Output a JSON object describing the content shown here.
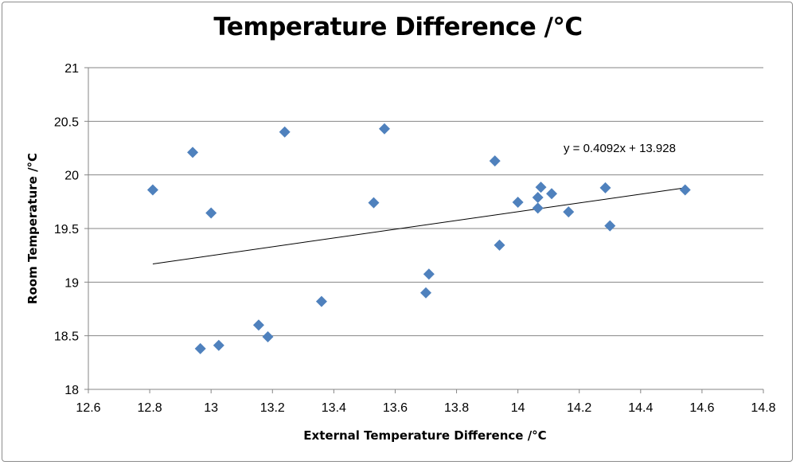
{
  "chart_data": {
    "type": "scatter",
    "title": "Temperature Difference /°C",
    "xlabel": "External Temperature Difference /°C",
    "ylabel": "Room Temperature /°C",
    "xlim": [
      12.6,
      14.8
    ],
    "ylim": [
      18,
      21
    ],
    "x_ticks": [
      "12.6",
      "12.8",
      "13",
      "13.2",
      "13.4",
      "13.6",
      "13.8",
      "14",
      "14.2",
      "14.4",
      "14.6",
      "14.8"
    ],
    "y_ticks": [
      "18",
      "18.5",
      "19",
      "19.5",
      "20",
      "20.5",
      "21"
    ],
    "grid": "horizontal",
    "marker_color": "#4f81bd",
    "points": [
      {
        "x": 12.81,
        "y": 19.86
      },
      {
        "x": 12.94,
        "y": 20.21
      },
      {
        "x": 12.965,
        "y": 18.38
      },
      {
        "x": 13.0,
        "y": 19.645
      },
      {
        "x": 13.025,
        "y": 18.41
      },
      {
        "x": 13.155,
        "y": 18.6
      },
      {
        "x": 13.185,
        "y": 18.49
      },
      {
        "x": 13.24,
        "y": 20.4
      },
      {
        "x": 13.36,
        "y": 18.82
      },
      {
        "x": 13.53,
        "y": 19.74
      },
      {
        "x": 13.565,
        "y": 20.43
      },
      {
        "x": 13.7,
        "y": 18.9
      },
      {
        "x": 13.71,
        "y": 19.075
      },
      {
        "x": 13.925,
        "y": 20.13
      },
      {
        "x": 13.94,
        "y": 19.345
      },
      {
        "x": 14.0,
        "y": 19.745
      },
      {
        "x": 14.065,
        "y": 19.69
      },
      {
        "x": 14.065,
        "y": 19.79
      },
      {
        "x": 14.075,
        "y": 19.885
      },
      {
        "x": 14.11,
        "y": 19.825
      },
      {
        "x": 14.165,
        "y": 19.655
      },
      {
        "x": 14.285,
        "y": 19.88
      },
      {
        "x": 14.3,
        "y": 19.525
      },
      {
        "x": 14.545,
        "y": 19.86
      }
    ],
    "trendline": {
      "slope": 0.4092,
      "intercept": 13.928,
      "x_range": [
        12.81,
        14.545
      ],
      "label": "y = 0.4092x + 13.928"
    }
  }
}
